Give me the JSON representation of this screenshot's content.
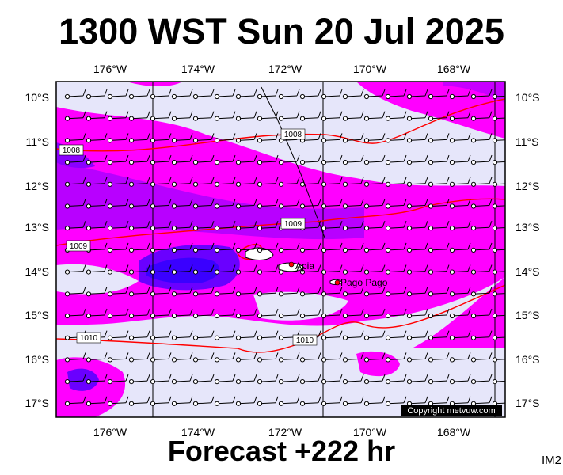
{
  "title": "1300 WST Sun 20 Jul 2025",
  "subtitle": "Forecast +222 hr",
  "map_code": "IM2",
  "copyright": "Copyright metvuw.com",
  "lon_labels": [
    "176°W",
    "174°W",
    "172°W",
    "170°W",
    "168°W"
  ],
  "lat_labels": [
    "10°S",
    "11°S",
    "12°S",
    "13°S",
    "14°S",
    "15°S",
    "16°S",
    "17°S"
  ],
  "places": [
    {
      "name": "Apia",
      "lon": -171.76,
      "lat": -13.83
    },
    {
      "name": "Pago Pago",
      "lon": -170.7,
      "lat": -14.28
    }
  ],
  "isobar_labels": [
    "1008",
    "1008",
    "1009",
    "1009",
    "1010",
    "1010"
  ],
  "colors": {
    "background_low": "#e6e6fa",
    "precip_medium": "#ff00ff",
    "precip_high": "#a000ff",
    "precip_heavy": "#3a00ff",
    "isobar": "#ff0000"
  }
}
